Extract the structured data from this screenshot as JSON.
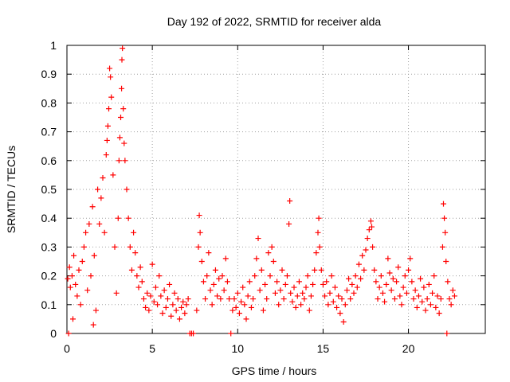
{
  "chart_data": {
    "type": "scatter",
    "title": "Day 192 of 2022, SRMTID for receiver alda",
    "xlabel": "GPS time / hours",
    "ylabel": "SRMTID / TECUs",
    "xlim": [
      0,
      24.5
    ],
    "ylim": [
      0,
      1
    ],
    "xticks": [
      0,
      5,
      10,
      15,
      20
    ],
    "xtick_labels": [
      "0",
      "5",
      "10",
      "15",
      "20"
    ],
    "yticks": [
      0,
      0.1,
      0.2,
      0.3,
      0.4,
      0.5,
      0.6,
      0.7,
      0.8,
      0.9,
      1
    ],
    "ytick_labels": [
      "0",
      "0.1",
      "0.2",
      "0.3",
      "0.4",
      "0.5",
      "0.6",
      "0.7",
      "0.8",
      "0.9",
      "1"
    ],
    "grid": true,
    "marker": "+",
    "color": "#ff0000",
    "series": [
      {
        "name": "SRMTID",
        "points": [
          [
            0.05,
            0.19
          ],
          [
            0.1,
            0.0
          ],
          [
            0.15,
            0.23
          ],
          [
            0.2,
            0.16
          ],
          [
            0.3,
            0.2
          ],
          [
            0.35,
            0.05
          ],
          [
            0.4,
            0.27
          ],
          [
            0.5,
            0.17
          ],
          [
            0.6,
            0.13
          ],
          [
            0.7,
            0.22
          ],
          [
            0.8,
            0.1
          ],
          [
            0.9,
            0.25
          ],
          [
            1.0,
            0.3
          ],
          [
            1.1,
            0.35
          ],
          [
            1.2,
            0.15
          ],
          [
            1.3,
            0.38
          ],
          [
            1.4,
            0.2
          ],
          [
            1.5,
            0.44
          ],
          [
            1.55,
            0.03
          ],
          [
            1.6,
            0.27
          ],
          [
            1.7,
            0.08
          ],
          [
            1.8,
            0.5
          ],
          [
            1.9,
            0.38
          ],
          [
            2.0,
            0.47
          ],
          [
            2.1,
            0.54
          ],
          [
            2.2,
            0.35
          ],
          [
            2.3,
            0.62
          ],
          [
            2.35,
            0.67
          ],
          [
            2.4,
            0.72
          ],
          [
            2.45,
            0.78
          ],
          [
            2.5,
            0.92
          ],
          [
            2.55,
            0.89
          ],
          [
            2.6,
            0.82
          ],
          [
            2.7,
            0.55
          ],
          [
            2.8,
            0.3
          ],
          [
            2.9,
            0.14
          ],
          [
            3.0,
            0.4
          ],
          [
            3.05,
            0.6
          ],
          [
            3.1,
            0.68
          ],
          [
            3.15,
            0.75
          ],
          [
            3.2,
            0.85
          ],
          [
            3.22,
            0.95
          ],
          [
            3.25,
            0.99
          ],
          [
            3.3,
            0.78
          ],
          [
            3.35,
            0.66
          ],
          [
            3.4,
            0.6
          ],
          [
            3.5,
            0.5
          ],
          [
            3.6,
            0.4
          ],
          [
            3.7,
            0.3
          ],
          [
            3.8,
            0.22
          ],
          [
            3.9,
            0.35
          ],
          [
            4.0,
            0.28
          ],
          [
            4.1,
            0.2
          ],
          [
            4.2,
            0.16
          ],
          [
            4.3,
            0.23
          ],
          [
            4.4,
            0.18
          ],
          [
            4.5,
            0.12
          ],
          [
            4.6,
            0.09
          ],
          [
            4.7,
            0.14
          ],
          [
            4.8,
            0.08
          ],
          [
            4.9,
            0.13
          ],
          [
            5.0,
            0.24
          ],
          [
            5.1,
            0.11
          ],
          [
            5.2,
            0.16
          ],
          [
            5.3,
            0.1
          ],
          [
            5.4,
            0.2
          ],
          [
            5.5,
            0.13
          ],
          [
            5.6,
            0.07
          ],
          [
            5.7,
            0.15
          ],
          [
            5.8,
            0.09
          ],
          [
            5.9,
            0.12
          ],
          [
            6.0,
            0.17
          ],
          [
            6.1,
            0.06
          ],
          [
            6.2,
            0.1
          ],
          [
            6.3,
            0.14
          ],
          [
            6.4,
            0.08
          ],
          [
            6.5,
            0.12
          ],
          [
            6.6,
            0.05
          ],
          [
            6.7,
            0.09
          ],
          [
            6.8,
            0.11
          ],
          [
            6.9,
            0.07
          ],
          [
            7.0,
            0.1
          ],
          [
            7.1,
            0.12
          ],
          [
            7.2,
            0.0
          ],
          [
            7.3,
            0.0
          ],
          [
            7.4,
            0.0
          ],
          [
            7.6,
            0.08
          ],
          [
            7.7,
            0.3
          ],
          [
            7.75,
            0.41
          ],
          [
            7.8,
            0.35
          ],
          [
            7.9,
            0.25
          ],
          [
            8.0,
            0.18
          ],
          [
            8.1,
            0.12
          ],
          [
            8.2,
            0.2
          ],
          [
            8.3,
            0.28
          ],
          [
            8.4,
            0.15
          ],
          [
            8.5,
            0.1
          ],
          [
            8.6,
            0.17
          ],
          [
            8.7,
            0.22
          ],
          [
            8.8,
            0.13
          ],
          [
            8.9,
            0.19
          ],
          [
            9.0,
            0.12
          ],
          [
            9.1,
            0.2
          ],
          [
            9.2,
            0.15
          ],
          [
            9.3,
            0.26
          ],
          [
            9.4,
            0.18
          ],
          [
            9.5,
            0.12
          ],
          [
            9.6,
            0.0
          ],
          [
            9.7,
            0.08
          ],
          [
            9.8,
            0.12
          ],
          [
            9.9,
            0.09
          ],
          [
            10.0,
            0.14
          ],
          [
            10.1,
            0.07
          ],
          [
            10.2,
            0.11
          ],
          [
            10.3,
            0.16
          ],
          [
            10.4,
            0.1
          ],
          [
            10.5,
            0.05
          ],
          [
            10.6,
            0.13
          ],
          [
            10.7,
            0.18
          ],
          [
            10.8,
            0.09
          ],
          [
            10.9,
            0.12
          ],
          [
            11.0,
            0.2
          ],
          [
            11.1,
            0.26
          ],
          [
            11.2,
            0.33
          ],
          [
            11.3,
            0.15
          ],
          [
            11.4,
            0.22
          ],
          [
            11.5,
            0.08
          ],
          [
            11.6,
            0.17
          ],
          [
            11.7,
            0.12
          ],
          [
            11.8,
            0.28
          ],
          [
            11.9,
            0.2
          ],
          [
            12.0,
            0.3
          ],
          [
            12.1,
            0.25
          ],
          [
            12.2,
            0.14
          ],
          [
            12.3,
            0.18
          ],
          [
            12.4,
            0.1
          ],
          [
            12.5,
            0.15
          ],
          [
            12.6,
            0.22
          ],
          [
            12.7,
            0.12
          ],
          [
            12.8,
            0.17
          ],
          [
            12.9,
            0.2
          ],
          [
            13.0,
            0.38
          ],
          [
            13.05,
            0.46
          ],
          [
            13.1,
            0.14
          ],
          [
            13.2,
            0.11
          ],
          [
            13.3,
            0.16
          ],
          [
            13.4,
            0.09
          ],
          [
            13.5,
            0.13
          ],
          [
            13.6,
            0.18
          ],
          [
            13.7,
            0.1
          ],
          [
            13.8,
            0.14
          ],
          [
            13.9,
            0.12
          ],
          [
            14.0,
            0.16
          ],
          [
            14.1,
            0.2
          ],
          [
            14.2,
            0.08
          ],
          [
            14.3,
            0.13
          ],
          [
            14.4,
            0.17
          ],
          [
            14.5,
            0.22
          ],
          [
            14.6,
            0.28
          ],
          [
            14.7,
            0.35
          ],
          [
            14.75,
            0.4
          ],
          [
            14.8,
            0.3
          ],
          [
            14.9,
            0.22
          ],
          [
            15.0,
            0.17
          ],
          [
            15.1,
            0.13
          ],
          [
            15.2,
            0.18
          ],
          [
            15.3,
            0.1
          ],
          [
            15.4,
            0.14
          ],
          [
            15.5,
            0.2
          ],
          [
            15.6,
            0.11
          ],
          [
            15.7,
            0.16
          ],
          [
            15.8,
            0.09
          ],
          [
            15.9,
            0.13
          ],
          [
            16.0,
            0.07
          ],
          [
            16.1,
            0.12
          ],
          [
            16.2,
            0.04
          ],
          [
            16.3,
            0.1
          ],
          [
            16.4,
            0.15
          ],
          [
            16.5,
            0.19
          ],
          [
            16.6,
            0.12
          ],
          [
            16.7,
            0.17
          ],
          [
            16.8,
            0.14
          ],
          [
            16.9,
            0.2
          ],
          [
            17.0,
            0.16
          ],
          [
            17.1,
            0.24
          ],
          [
            17.2,
            0.19
          ],
          [
            17.3,
            0.27
          ],
          [
            17.4,
            0.22
          ],
          [
            17.5,
            0.29
          ],
          [
            17.6,
            0.33
          ],
          [
            17.7,
            0.36
          ],
          [
            17.8,
            0.39
          ],
          [
            17.85,
            0.37
          ],
          [
            17.9,
            0.3
          ],
          [
            18.0,
            0.22
          ],
          [
            18.1,
            0.18
          ],
          [
            18.2,
            0.12
          ],
          [
            18.3,
            0.16
          ],
          [
            18.4,
            0.2
          ],
          [
            18.5,
            0.14
          ],
          [
            18.6,
            0.11
          ],
          [
            18.7,
            0.17
          ],
          [
            18.8,
            0.26
          ],
          [
            18.9,
            0.21
          ],
          [
            19.0,
            0.15
          ],
          [
            19.1,
            0.19
          ],
          [
            19.2,
            0.12
          ],
          [
            19.3,
            0.18
          ],
          [
            19.4,
            0.23
          ],
          [
            19.5,
            0.13
          ],
          [
            19.6,
            0.1
          ],
          [
            19.7,
            0.16
          ],
          [
            19.8,
            0.2
          ],
          [
            19.9,
            0.14
          ],
          [
            20.0,
            0.22
          ],
          [
            20.1,
            0.26
          ],
          [
            20.2,
            0.18
          ],
          [
            20.3,
            0.12
          ],
          [
            20.4,
            0.15
          ],
          [
            20.5,
            0.09
          ],
          [
            20.6,
            0.13
          ],
          [
            20.7,
            0.19
          ],
          [
            20.8,
            0.11
          ],
          [
            20.9,
            0.16
          ],
          [
            21.0,
            0.08
          ],
          [
            21.1,
            0.12
          ],
          [
            21.2,
            0.17
          ],
          [
            21.3,
            0.1
          ],
          [
            21.4,
            0.14
          ],
          [
            21.5,
            0.2
          ],
          [
            21.6,
            0.09
          ],
          [
            21.7,
            0.13
          ],
          [
            21.8,
            0.07
          ],
          [
            21.9,
            0.12
          ],
          [
            22.0,
            0.3
          ],
          [
            22.05,
            0.45
          ],
          [
            22.1,
            0.4
          ],
          [
            22.15,
            0.35
          ],
          [
            22.2,
            0.25
          ],
          [
            22.25,
            0.0
          ],
          [
            22.3,
            0.18
          ],
          [
            22.4,
            0.12
          ],
          [
            22.5,
            0.1
          ],
          [
            22.6,
            0.15
          ],
          [
            22.7,
            0.13
          ]
        ]
      }
    ]
  }
}
